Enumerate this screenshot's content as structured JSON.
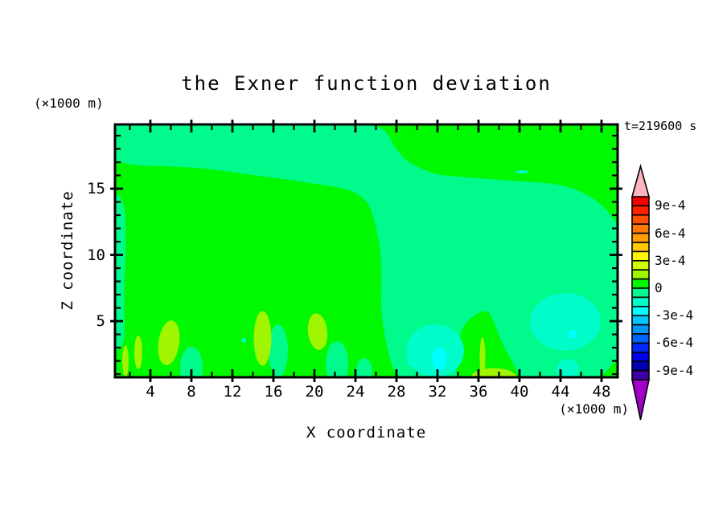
{
  "page": {
    "background": "#FFFFFF"
  },
  "title": "the Exner function deviation",
  "time_label": "t=219600 s",
  "axes": {
    "x_label": "X coordinate",
    "x_unit": "(×1000 m)",
    "y_label": "Z coordinate",
    "y_unit": "(×1000 m)",
    "xlim": [
      0.55,
      49.57
    ],
    "ylim": [
      0.76,
      19.85
    ],
    "x_ticks_major": [
      4,
      8,
      12,
      16,
      20,
      24,
      28,
      32,
      36,
      40,
      44,
      48
    ],
    "x_ticks_minor": [
      2,
      6,
      10,
      14,
      18,
      22,
      26,
      30,
      34,
      38,
      42,
      46
    ],
    "y_ticks_major": [
      5,
      10,
      15
    ],
    "y_ticks_minor": [
      1,
      2,
      3,
      4,
      6,
      7,
      8,
      9,
      11,
      12,
      13,
      14,
      16,
      17,
      18,
      19
    ]
  },
  "chart_data": {
    "type": "filled_contour",
    "title": "the Exner function deviation",
    "xlabel": "X coordinate",
    "ylabel": "Z coordinate",
    "units": "×1000 m",
    "time": "t=219600 s",
    "grid": false,
    "contour_interval": 0.0001,
    "level_boundaries_top_to_bottom": [
      0.001,
      0.0009,
      0.0008,
      0.0007,
      0.0006,
      0.0005,
      0.0004,
      0.0003,
      0.0002,
      0.0001,
      0.0,
      -0.0001,
      -0.0002,
      -0.0003,
      -0.0004,
      -0.0005,
      -0.0006,
      -0.0007,
      -0.0008,
      -0.0009,
      -0.001
    ],
    "colorbar": {
      "segment_colors_top_to_bottom": [
        "#F80000",
        "#FF2000",
        "#FF5000",
        "#FF7800",
        "#FFA000",
        "#FFC800",
        "#FFF800",
        "#D0FC00",
        "#A0F500",
        "#00F800",
        "#00FA8C",
        "#00FCC8",
        "#00FFFF",
        "#00C8FF",
        "#0096FF",
        "#0064FF",
        "#0028FF",
        "#0000F0",
        "#0000B0",
        "#4000A8"
      ],
      "over_arrow_color": "#FFB4C0",
      "under_arrow_color": "#A000C8",
      "labels": [
        {
          "text": "9e-4",
          "at_boundary": 1
        },
        {
          "text": "6e-4",
          "at_boundary": 4
        },
        {
          "text": "3e-4",
          "at_boundary": 7
        },
        {
          "text": "0",
          "at_boundary": 10
        },
        {
          "text": "-3e-4",
          "at_boundary": 13
        },
        {
          "text": "-6e-4",
          "at_boundary": 16
        },
        {
          "text": "-9e-4",
          "at_boundary": 19
        }
      ]
    },
    "field_summary": "Deviation field lies mostly between -3e-4 and +2e-4: positive (0..1e-4) green field on the left and top-right, slightly negative (-1e-4..0) spring-green band along the top-left and over the lower-right half, with -1e-4..-3e-4 aquamarine/cyan pools near the bottom right and +1e-4..2e-4 chartreuse plumes rising from the bottom boundary.",
    "regions": [
      {
        "name": "base-field",
        "level_range": [
          0,
          0.0001
        ],
        "color": "#00F800",
        "shape": "rect"
      },
      {
        "name": "upper-band-and-right-field",
        "level_range": [
          -0.0001,
          0
        ],
        "color": "#00FA8C",
        "shape": "polygon",
        "points": [
          [
            -1,
            21
          ],
          [
            26.3,
            20.6
          ],
          [
            28.16,
            17.43
          ],
          [
            31.14,
            16.21
          ],
          [
            33.25,
            15.91
          ],
          [
            51,
            15.0
          ],
          [
            51,
            -1
          ],
          [
            28.55,
            -1
          ],
          [
            26.43,
            4.7
          ],
          [
            26.59,
            9.24
          ],
          [
            26.2,
            11.67
          ],
          [
            25.02,
            14.7
          ],
          [
            19.92,
            15.42
          ],
          [
            12.31,
            16.21
          ],
          [
            8.39,
            16.64
          ],
          [
            -1,
            16.82
          ]
        ]
      },
      {
        "name": "left-edge-strip",
        "level_range": [
          -0.0001,
          0
        ],
        "color": "#00FA8C",
        "shape": "polygon",
        "points": [
          [
            -0.6,
            14.7
          ],
          [
            1.49,
            14.52
          ],
          [
            1.65,
            10.76
          ],
          [
            1.41,
            7.12
          ],
          [
            1.57,
            2.7
          ],
          [
            -0.6,
            2.88
          ]
        ]
      },
      {
        "name": "bottom-right-positive-wedge",
        "level_range": [
          0,
          0.0001
        ],
        "color": "#00F800",
        "shape": "polygon",
        "points": [
          [
            33.64,
            -0.5
          ],
          [
            34.04,
            4.09
          ],
          [
            35.21,
            5.3
          ],
          [
            36.78,
            5.91
          ],
          [
            37.33,
            5.3
          ],
          [
            38.35,
            3.18
          ],
          [
            39.53,
            1.67
          ],
          [
            40.7,
            -0.5
          ]
        ]
      },
      {
        "name": "neg-blob",
        "level_range": [
          -0.0001,
          0
        ],
        "color": "#00FA8C",
        "shape": "ellipse",
        "ellipse": [
          8.0,
          1.49,
          1.1,
          1.58,
          0
        ]
      },
      {
        "name": "neg-blob",
        "level_range": [
          -0.0001,
          0
        ],
        "color": "#00FA8C",
        "shape": "ellipse",
        "ellipse": [
          16.47,
          2.76,
          0.94,
          2.0,
          0
        ]
      },
      {
        "name": "neg-blob",
        "level_range": [
          -0.0001,
          0
        ],
        "color": "#00FA8C",
        "shape": "ellipse",
        "ellipse": [
          22.2,
          1.79,
          1.1,
          1.7,
          0
        ]
      },
      {
        "name": "neg-blob",
        "level_range": [
          -0.0001,
          0
        ],
        "color": "#00FA8C",
        "shape": "ellipse",
        "ellipse": [
          24.86,
          1.24,
          0.78,
          0.97,
          0
        ]
      },
      {
        "name": "pos-plume",
        "level_range": [
          0.0001,
          0.0002
        ],
        "color": "#A0F500",
        "shape": "ellipse",
        "ellipse": [
          5.8,
          3.36,
          1.02,
          1.7,
          8
        ]
      },
      {
        "name": "pos-plume",
        "level_range": [
          0.0001,
          0.0002
        ],
        "color": "#A0F500",
        "shape": "ellipse",
        "ellipse": [
          2.82,
          2.64,
          0.39,
          1.27,
          0
        ]
      },
      {
        "name": "pos-plume",
        "level_range": [
          0.0001,
          0.0002
        ],
        "color": "#A0F500",
        "shape": "ellipse",
        "ellipse": [
          1.57,
          1.97,
          0.31,
          1.21,
          0
        ]
      },
      {
        "name": "pos-plume",
        "level_range": [
          0.0001,
          0.0002
        ],
        "color": "#A0F500",
        "shape": "ellipse",
        "ellipse": [
          14.94,
          3.7,
          0.86,
          2.06,
          0
        ]
      },
      {
        "name": "pos-plume",
        "level_range": [
          0.0001,
          0.0002
        ],
        "color": "#A0F500",
        "shape": "ellipse",
        "ellipse": [
          20.31,
          4.21,
          0.94,
          1.39,
          -6
        ]
      },
      {
        "name": "pos-spike",
        "level_range": [
          0.0001,
          0.0002
        ],
        "color": "#A0F500",
        "shape": "ellipse",
        "ellipse": [
          36.39,
          2.27,
          0.27,
          1.52,
          0
        ]
      },
      {
        "name": "pos-bottom-patch",
        "level_range": [
          0.0001,
          0.0002
        ],
        "color": "#A0F500",
        "shape": "ellipse",
        "ellipse": [
          37.49,
          0.7,
          2.27,
          0.75,
          0
        ]
      },
      {
        "name": "neg2-pool",
        "level_range": [
          -0.0002,
          -0.0001
        ],
        "color": "#00FCC8",
        "shape": "ellipse",
        "ellipse": [
          31.76,
          2.76,
          2.82,
          2.0,
          0
        ]
      },
      {
        "name": "neg2-pool",
        "level_range": [
          -0.0002,
          -0.0001
        ],
        "color": "#00FCC8",
        "shape": "ellipse",
        "ellipse": [
          44.47,
          4.94,
          3.45,
          2.18,
          0
        ]
      },
      {
        "name": "neg2-pool",
        "level_range": [
          -0.0002,
          -0.0001
        ],
        "color": "#00FCC8",
        "shape": "ellipse",
        "ellipse": [
          44.71,
          1.36,
          1.1,
          0.79,
          0
        ]
      },
      {
        "name": "neg2-dot",
        "level_range": [
          -0.0002,
          -0.0001
        ],
        "color": "#00FCC8",
        "shape": "ellipse",
        "ellipse": [
          29.33,
          1.85,
          0.31,
          0.24,
          0
        ]
      },
      {
        "name": "neg2-dot",
        "level_range": [
          -0.0002,
          -0.0001
        ],
        "color": "#00FCC8",
        "shape": "ellipse",
        "ellipse": [
          13.1,
          3.55,
          0.24,
          0.18,
          0
        ]
      },
      {
        "name": "neg2-dash",
        "level_range": [
          -0.0002,
          -0.0001
        ],
        "color": "#00FCC8",
        "shape": "ellipse",
        "ellipse": [
          40.24,
          16.27,
          0.63,
          0.12,
          0
        ]
      },
      {
        "name": "neg3-core",
        "level_range": [
          -0.0003,
          -0.0002
        ],
        "color": "#00FFFF",
        "shape": "ellipse",
        "ellipse": [
          32.16,
          2.15,
          0.71,
          0.91,
          0
        ]
      },
      {
        "name": "neg3-dot",
        "level_range": [
          -0.0003,
          -0.0002
        ],
        "color": "#00FFFF",
        "shape": "ellipse",
        "ellipse": [
          45.18,
          4.03,
          0.39,
          0.3,
          0
        ]
      }
    ]
  }
}
